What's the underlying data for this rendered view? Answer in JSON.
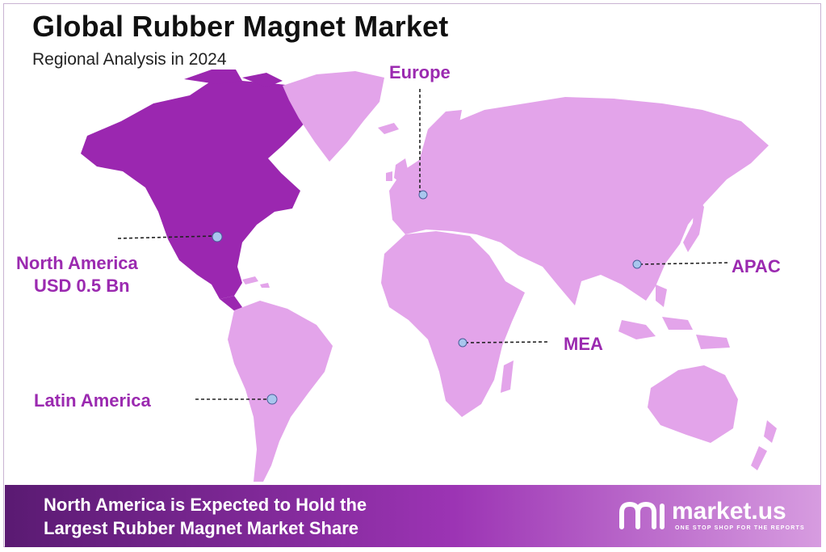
{
  "header": {
    "title": "Global Rubber Magnet Market",
    "subtitle": "Regional Analysis in 2024"
  },
  "regions": {
    "europe": {
      "label": "Europe"
    },
    "north_america": {
      "label": "North America",
      "value": "USD 0.5 Bn"
    },
    "apac": {
      "label": "APAC"
    },
    "mea": {
      "label": "MEA"
    },
    "latin_america": {
      "label": "Latin America"
    }
  },
  "footer": {
    "line1": "North America is Expected to Hold the",
    "line2": "Largest Rubber Magnet Market Share"
  },
  "brand": {
    "name": "market.us",
    "tagline": "ONE STOP SHOP FOR THE REPORTS"
  },
  "colors": {
    "highlight_region": "#9b27b0",
    "other_regions": "#e3a4ea",
    "label_text": "#9b2ab0",
    "marker": "#a9c6ee"
  }
}
